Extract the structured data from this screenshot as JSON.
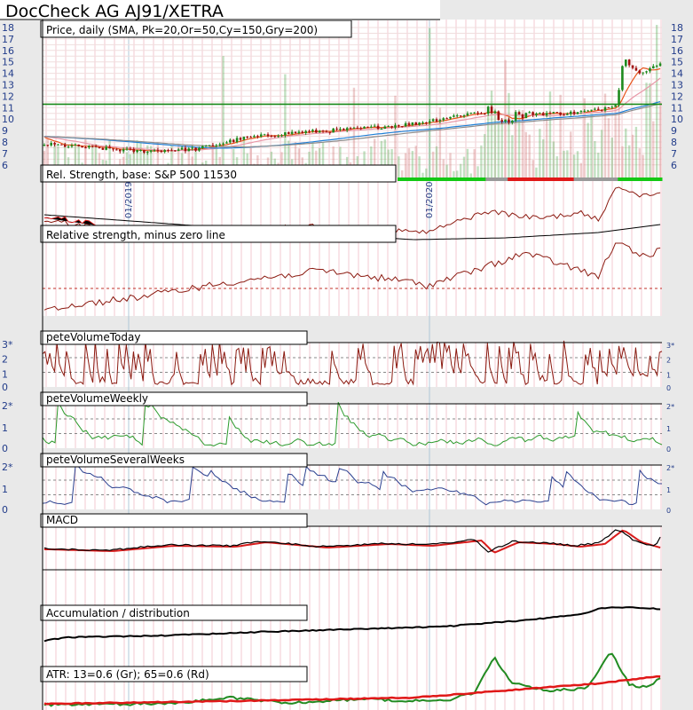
{
  "chart_title": "DocCheck AG AJ91/XETRA",
  "colors": {
    "background": "#e9e9e9",
    "panel": "#ffffff",
    "price_up": "#1e8a1e",
    "price_down": "#a01010",
    "sma_orange": "#e8561c",
    "sma_cyan": "#1e7fd6",
    "sma_gray": "#8c8c8c",
    "sma_pink": "#e898a8",
    "volume_today": "#8b1a10",
    "volume_weekly": "#2c9a2c",
    "volume_several": "#2a3f8f",
    "macd_black": "#000000",
    "macd_red": "#d81c1c",
    "atr_green": "#228b22",
    "atr_red": "#e01818",
    "axis_label": "#223c8a"
  },
  "date_labels": [
    "01/2019",
    "01/2020"
  ],
  "chart_data": [
    {
      "type": "candlestick",
      "title": "Price, daily (SMA, Pk=20,Or=50,Cy=150,Gry=200)",
      "y_ticks": [
        "18",
        "17",
        "16",
        "15",
        "14",
        "13",
        "12",
        "11",
        "10",
        "9",
        "8",
        "7",
        "6"
      ],
      "right_y_ticks": [
        "18",
        "17",
        "16",
        "15",
        "14",
        "13",
        "12",
        "11",
        "10",
        "9",
        "8",
        "7",
        "6"
      ],
      "horizontal_line": 11.3,
      "anchors": [
        [
          0,
          7.8
        ],
        [
          0.08,
          7.5
        ],
        [
          0.15,
          7.2
        ],
        [
          0.25,
          7.4
        ],
        [
          0.32,
          8.3
        ],
        [
          0.4,
          8.8
        ],
        [
          0.5,
          9.1
        ],
        [
          0.6,
          9.6
        ],
        [
          0.7,
          10.6
        ],
        [
          0.75,
          10.4
        ],
        [
          0.8,
          10.5
        ],
        [
          0.85,
          10.5
        ],
        [
          0.9,
          10.8
        ],
        [
          0.93,
          11.4
        ],
        [
          0.94,
          15.3
        ],
        [
          0.97,
          14.0
        ],
        [
          1.0,
          14.8
        ]
      ],
      "range_bar_colors": [
        "#14c814",
        "#9a9a9a",
        "#e01818",
        "#9a9a9a",
        "#14c814"
      ]
    },
    {
      "type": "line",
      "title": "Rel. Strength, base: S&P 500 11530",
      "series": [
        {
          "color": "red"
        },
        {
          "color": "black"
        }
      ]
    },
    {
      "type": "line",
      "title": "Relative strength, minus zero line"
    },
    {
      "type": "line",
      "title": "peteVolumeToday",
      "y_ticks": [
        "3*",
        "2",
        "1",
        "0"
      ],
      "right_y_ticks": [
        "3*",
        "2",
        "1",
        "0"
      ]
    },
    {
      "type": "line",
      "title": "peteVolumeWeekly",
      "y_ticks": [
        "2*",
        "1",
        "0"
      ],
      "right_y_ticks": [
        "2*",
        "1",
        "0"
      ]
    },
    {
      "type": "line",
      "title": "peteVolumeSeveralWeeks",
      "y_ticks": [
        "2*",
        "1",
        "0"
      ],
      "right_y_ticks": [
        "2*",
        "1",
        "0"
      ]
    },
    {
      "type": "line",
      "title": "MACD"
    },
    {
      "type": "line",
      "title": "Accumulation / distribution"
    },
    {
      "type": "line",
      "title": "ATR: 13=0.6 (Gr); 65=0.6 (Rd)"
    }
  ]
}
